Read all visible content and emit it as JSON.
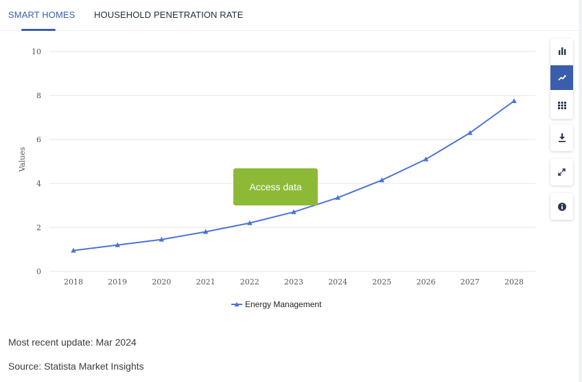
{
  "tabs": [
    {
      "label": "SMART HOMES",
      "active": true
    },
    {
      "label": "HOUSEHOLD PENETRATION RATE",
      "active": false
    }
  ],
  "toolbar": {
    "icons": [
      "bar-chart-icon",
      "line-chart-icon",
      "table-icon",
      "download-icon",
      "expand-icon",
      "info-icon"
    ],
    "active_icon": "line-chart-icon"
  },
  "overlay": {
    "access_label": "Access data"
  },
  "footer": {
    "update_text": "Most recent update: Mar 2024",
    "source_text": "Source: Statista Market Insights"
  },
  "colors": {
    "accent": "#3a5dae",
    "series": "#4b73d6",
    "access": "#8dba36"
  },
  "chart_data": {
    "type": "line",
    "title": "",
    "xlabel": "",
    "ylabel": "Values",
    "x": [
      "2018",
      "2019",
      "2020",
      "2021",
      "2022",
      "2023",
      "2024",
      "2025",
      "2026",
      "2027",
      "2028"
    ],
    "series": [
      {
        "name": "Energy Management",
        "marker": "triangle",
        "values": [
          0.95,
          1.2,
          1.45,
          1.8,
          2.2,
          2.7,
          3.35,
          4.15,
          5.1,
          6.3,
          7.75
        ]
      }
    ],
    "ylim": [
      0,
      10
    ],
    "yticks": [
      "0",
      "2",
      "4",
      "6",
      "8",
      "10"
    ],
    "grid": true,
    "legend": "bottom-center"
  }
}
